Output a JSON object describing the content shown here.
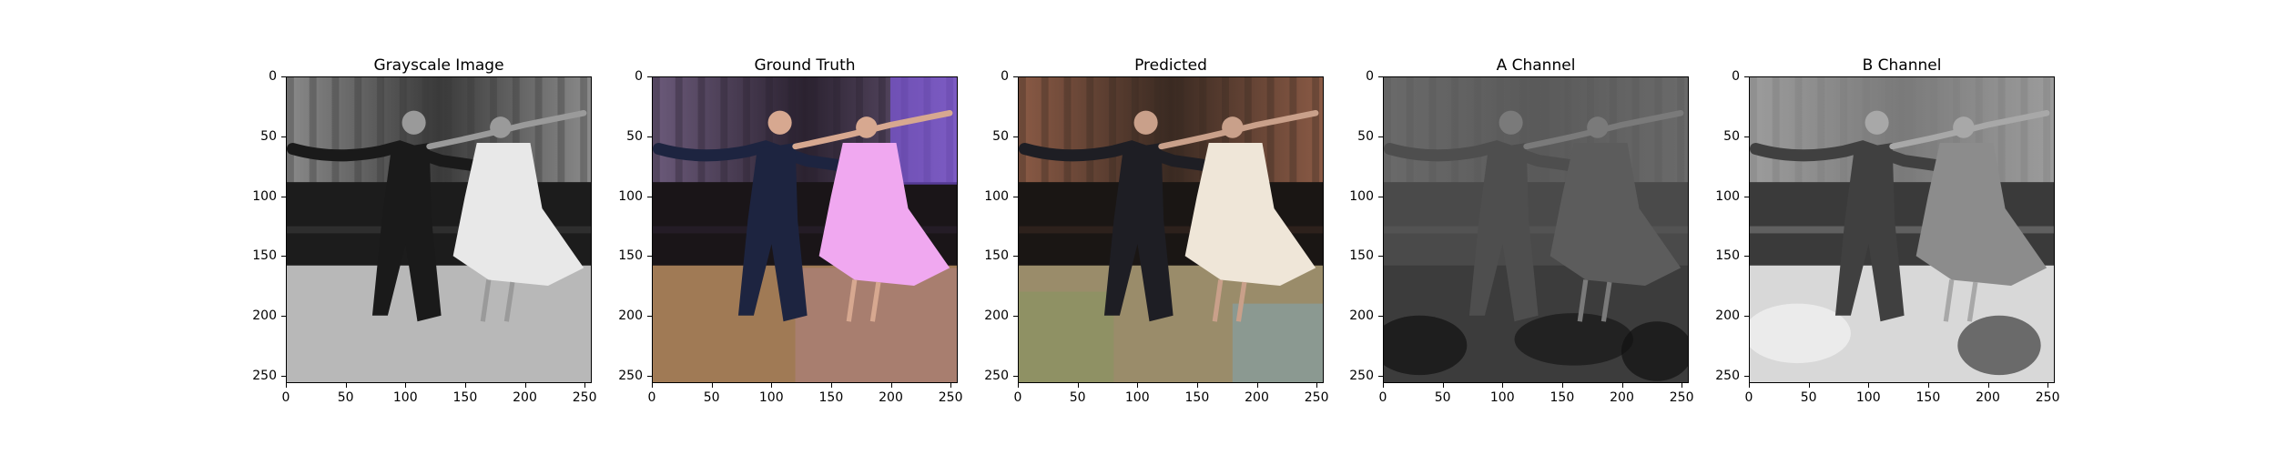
{
  "panels": [
    {
      "title": "Grayscale Image",
      "kind": "gray"
    },
    {
      "title": "Ground Truth",
      "kind": "truth"
    },
    {
      "title": "Predicted",
      "kind": "pred"
    },
    {
      "title": "A Channel",
      "kind": "achan"
    },
    {
      "title": "B Channel",
      "kind": "bchan"
    }
  ],
  "y_ticks": [
    "0",
    "50",
    "100",
    "150",
    "200",
    "250"
  ],
  "x_ticks": [
    "0",
    "50",
    "100",
    "150",
    "200",
    "250"
  ],
  "axis_range": [
    0,
    256
  ]
}
